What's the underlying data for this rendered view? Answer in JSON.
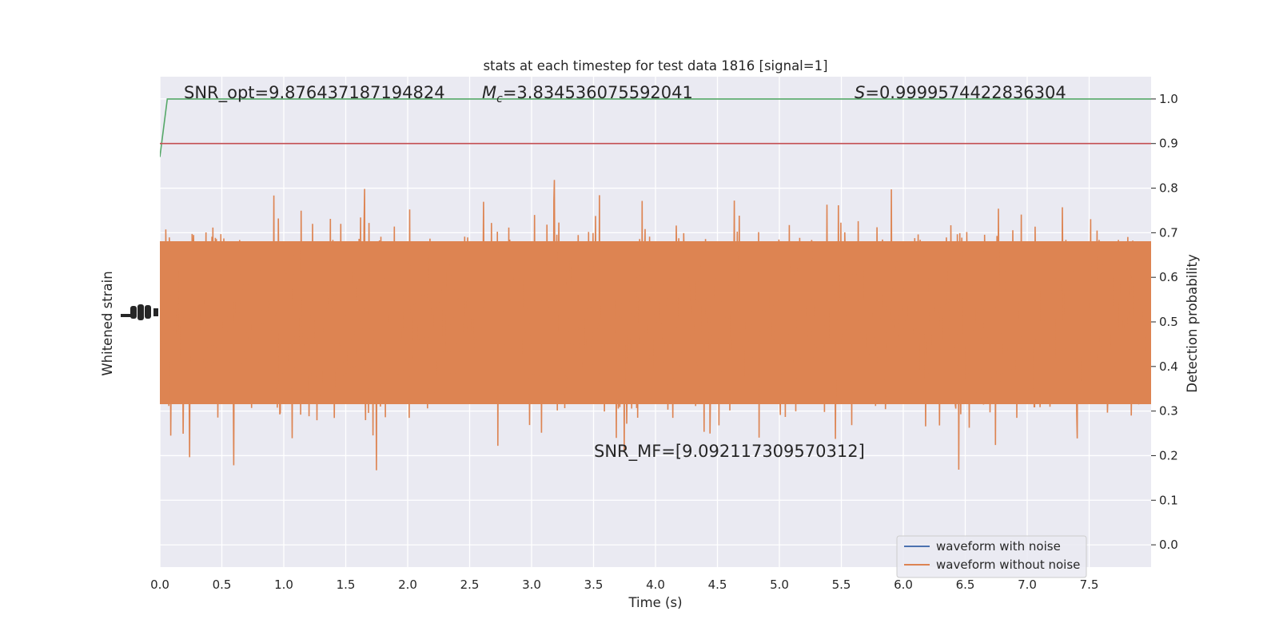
{
  "chart_data": {
    "type": "line",
    "title": "stats at each timestep for test data 1816 [signal=1]",
    "xlabel": "Time (s)",
    "ylabel_left": "Whitened strain",
    "ylabel_right": "Detection probability",
    "xlim": [
      0.0,
      8.0
    ],
    "ylim_right": [
      -0.05,
      1.05
    ],
    "x_ticks": [
      "0.0",
      "0.5",
      "1.0",
      "1.5",
      "2.0",
      "2.5",
      "3.0",
      "3.5",
      "4.0",
      "4.5",
      "5.0",
      "5.5",
      "6.0",
      "6.5",
      "7.0",
      "7.5"
    ],
    "y_right_ticks": [
      "0.0",
      "0.1",
      "0.2",
      "0.3",
      "0.4",
      "0.5",
      "0.6",
      "0.7",
      "0.8",
      "0.9",
      "1.0"
    ],
    "grid": true,
    "legend_position": "lower-right",
    "series": [
      {
        "name": "waveform with noise",
        "color": "#4c72b0"
      },
      {
        "name": "waveform without noise",
        "color": "#dd8452"
      },
      {
        "color": "#55a868",
        "x": [
          0.0,
          0.06,
          8.0
        ],
        "y": [
          0.87,
          1.0,
          1.0
        ]
      },
      {
        "color": "#c44e52",
        "x": [
          0.0,
          8.0
        ],
        "y": [
          0.9,
          0.9
        ]
      }
    ],
    "annotations": {
      "snr_opt": "SNR_opt=9.876437187194824",
      "mc_symbol": "M",
      "mc_sub": "c",
      "mc_value": "=3.834536075592041",
      "s_symbol": "S",
      "s_value": "=0.9999574422836304",
      "snr_mf": "SNR_MF=[9.092117309570312]"
    }
  }
}
